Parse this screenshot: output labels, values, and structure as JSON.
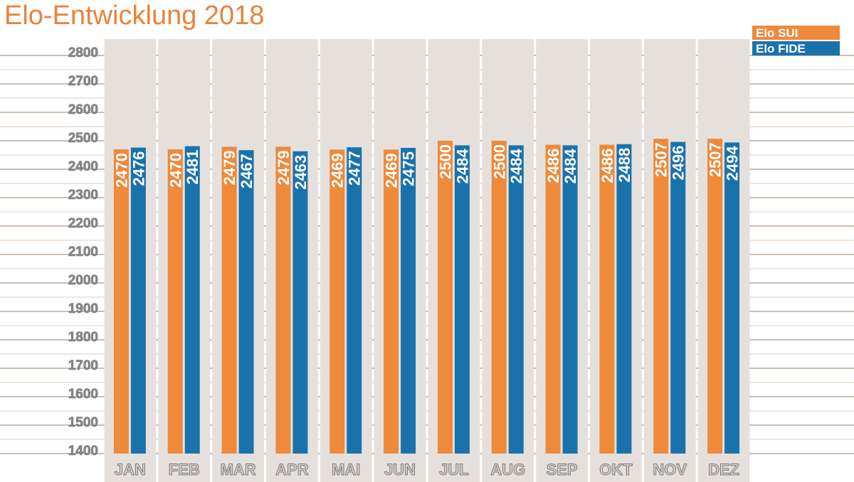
{
  "chart_data": {
    "type": "bar",
    "title": "Elo-Entwicklung   2018",
    "categories": [
      "JAN",
      "FEB",
      "MAR",
      "APR",
      "MAI",
      "JUN",
      "JUL",
      "AUG",
      "SEP",
      "OKT",
      "NOV",
      "DEZ"
    ],
    "series": [
      {
        "name": "Elo SUI",
        "color": "#ee8a3a",
        "values": [
          2470,
          2470,
          2479,
          2479,
          2469,
          2469,
          2500,
          2500,
          2486,
          2486,
          2507,
          2507
        ]
      },
      {
        "name": "Elo FIDE",
        "color": "#1a72ad",
        "values": [
          2476,
          2481,
          2467,
          2463,
          2477,
          2475,
          2484,
          2484,
          2484,
          2488,
          2496,
          2494
        ]
      }
    ],
    "yticks": [
      1400,
      1500,
      1600,
      1700,
      1800,
      1900,
      2000,
      2100,
      2200,
      2300,
      2400,
      2500,
      2600,
      2700,
      2800
    ],
    "ylim": [
      1400,
      2850
    ],
    "grid": true,
    "legend": "top-right",
    "xlabel": "",
    "ylabel": ""
  }
}
